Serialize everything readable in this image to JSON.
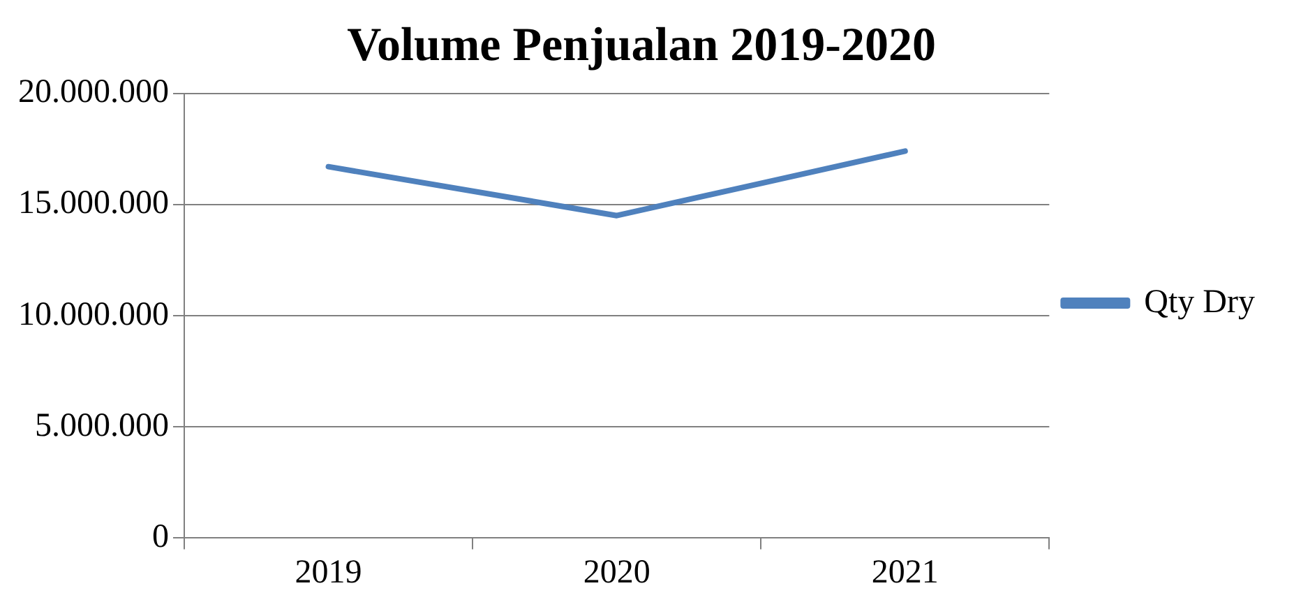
{
  "chart_data": {
    "type": "line",
    "title": "Volume Penjualan 2019-2020",
    "categories": [
      "2019",
      "2020",
      "2021"
    ],
    "series": [
      {
        "name": "Qty Dry",
        "color": "#4f81bd",
        "values": [
          16700000,
          14500000,
          17400000
        ]
      }
    ],
    "ylim": [
      0,
      20000000
    ],
    "yticks": [
      {
        "value": 0,
        "label": "0"
      },
      {
        "value": 5000000,
        "label": "5.000.000"
      },
      {
        "value": 10000000,
        "label": "10.000.000"
      },
      {
        "value": 15000000,
        "label": "15.000.000"
      },
      {
        "value": 20000000,
        "label": "20.000.000"
      }
    ],
    "grid": "y",
    "legend": "right",
    "marker": "none",
    "line_style": "solid"
  }
}
